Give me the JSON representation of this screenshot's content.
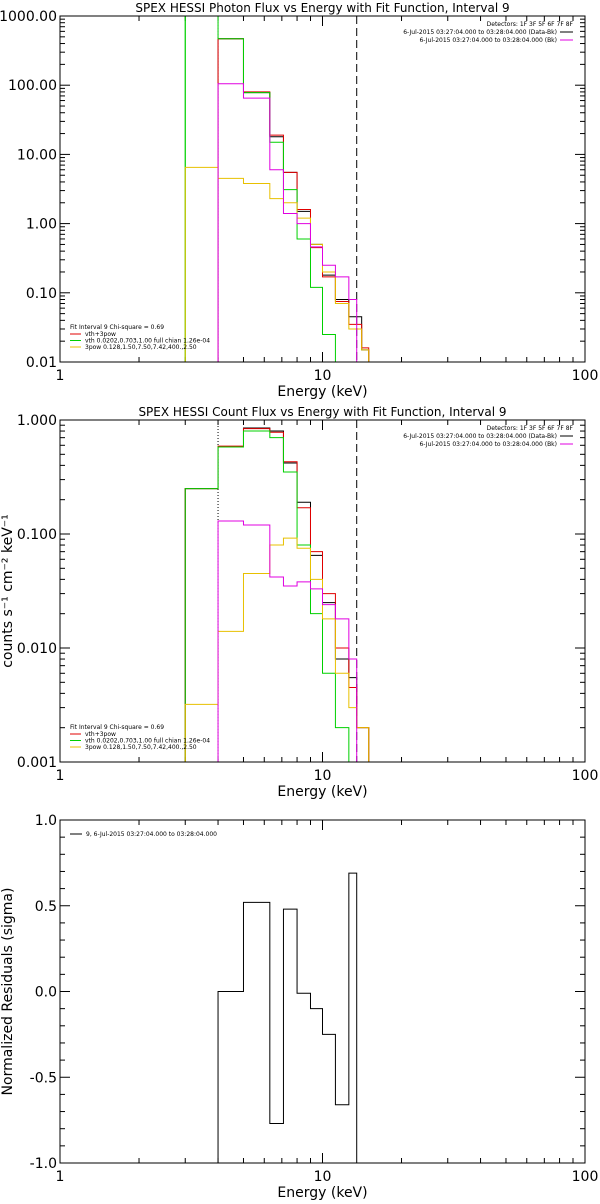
{
  "colors": {
    "black": "#000000",
    "red": "#e00000",
    "green": "#00d000",
    "magenta": "#e000e0",
    "yellow": "#e8c000",
    "purple_dotted": "#a000a0"
  },
  "chart_data": [
    {
      "type": "line",
      "title": "SPEX HESSI Photon Flux vs Energy with Fit Function, Interval 9",
      "xlabel": "Energy (keV)",
      "ylabel": "",
      "xscale": "log",
      "yscale": "log",
      "xlim": [
        1,
        100
      ],
      "ylim": [
        0.01,
        1000
      ],
      "xticks": [
        {
          "v": 1,
          "label": "1"
        },
        {
          "v": 10,
          "label": "10"
        },
        {
          "v": 100,
          "label": "100"
        }
      ],
      "yticks": [
        {
          "v": 0.01,
          "label": "0.01"
        },
        {
          "v": 0.1,
          "label": "0.10"
        },
        {
          "v": 1,
          "label": "1.00"
        },
        {
          "v": 10,
          "label": "10.00"
        },
        {
          "v": 100,
          "label": "100.00"
        },
        {
          "v": 1000,
          "label": "1000.00"
        }
      ],
      "vlines": [
        {
          "x": 3.0,
          "color": "green",
          "style": "solid"
        },
        {
          "x": 4.0,
          "color": "purple_dotted",
          "style": "dotted"
        },
        {
          "x": 13.5,
          "color": "black",
          "style": "dashed"
        }
      ],
      "legend_topright": {
        "header": "Detectors: 1F 3F 5F 6F 7F 8F",
        "entries": [
          {
            "text": "6-Jul-2015 03:27:04.000 to 03:28:04.000 (Data-Bk)",
            "color": "black"
          },
          {
            "text": "6-Jul-2015 03:27:04.000 to 03:28:04.000 (Bk)",
            "color": "magenta"
          }
        ]
      },
      "legend_bottomleft": {
        "header": "Fit Interval 9   Chi-square = 0.69",
        "entries": [
          {
            "text": "vth+3pow",
            "color": "red"
          },
          {
            "text": "vth 0.0202,0.703,1.00  full chian 1.26e-04",
            "color": "green"
          },
          {
            "text": "3pow 0.128,1.50,7.50,7.42,400.,2.50",
            "color": "yellow"
          }
        ]
      },
      "series": [
        {
          "name": "Data-Bk",
          "color": "black",
          "edges": [
            4.0,
            5.0,
            6.3,
            7.1,
            8.0,
            9.0,
            10.0,
            11.2,
            12.6,
            14.1,
            15.0
          ],
          "values": [
            470,
            78,
            18,
            5.5,
            1.5,
            0.5,
            0.18,
            0.08,
            0.045,
            0.015
          ]
        },
        {
          "name": "vth+3pow",
          "color": "red",
          "edges": [
            4.0,
            5.0,
            6.3,
            7.1,
            8.0,
            9.0,
            10.0,
            11.2,
            12.6,
            14.1,
            15.0
          ],
          "values": [
            470,
            80,
            19,
            5.5,
            1.6,
            0.45,
            0.17,
            0.075,
            0.035,
            0.016
          ]
        },
        {
          "name": "vth",
          "color": "green",
          "edges": [
            3.0,
            4.0,
            5.0,
            6.3,
            7.1,
            8.0,
            9.0,
            10.0,
            11.2,
            12.6
          ],
          "values": [
            1000,
            470,
            78,
            15,
            3.1,
            0.6,
            0.12,
            0.025,
            0.01
          ]
        },
        {
          "name": "3pow",
          "color": "yellow",
          "edges": [
            3.0,
            4.0,
            5.0,
            6.3,
            7.1,
            8.0,
            9.0,
            10.0,
            11.2,
            12.6,
            14.1,
            15.0
          ],
          "values": [
            6.5,
            4.5,
            3.8,
            2.3,
            2.0,
            1.2,
            0.5,
            0.2,
            0.07,
            0.03,
            0.015
          ]
        },
        {
          "name": "Bk",
          "color": "magenta",
          "edges": [
            4.0,
            5.0,
            6.3,
            7.1,
            8.0,
            9.0,
            10.0,
            11.2,
            12.6,
            13.5
          ],
          "values": [
            105,
            65,
            6,
            1.4,
            1.0,
            0.46,
            0.25,
            0.17,
            0.08
          ]
        }
      ]
    },
    {
      "type": "line",
      "title": "SPEX HESSI Count Flux vs Energy with Fit Function, Interval 9",
      "xlabel": "Energy (keV)",
      "ylabel": "counts s⁻¹ cm⁻² keV⁻¹",
      "xscale": "log",
      "yscale": "log",
      "xlim": [
        1,
        100
      ],
      "ylim": [
        0.001,
        1
      ],
      "xticks": [
        {
          "v": 1,
          "label": "1"
        },
        {
          "v": 10,
          "label": "10"
        },
        {
          "v": 100,
          "label": "100"
        }
      ],
      "yticks": [
        {
          "v": 0.001,
          "label": "0.001"
        },
        {
          "v": 0.01,
          "label": "0.010"
        },
        {
          "v": 0.1,
          "label": "0.100"
        },
        {
          "v": 1,
          "label": "1.000"
        }
      ],
      "vlines": [
        {
          "x": 4.0,
          "color": "black",
          "style": "dotted"
        },
        {
          "x": 13.5,
          "color": "black",
          "style": "dashed"
        }
      ],
      "legend_topright": {
        "header": "Detectors: 1F 3F 5F 6F 7F 8F",
        "entries": [
          {
            "text": "6-Jul-2015 03:27:04.000 to 03:28:04.000 (Data-Bk)",
            "color": "black"
          },
          {
            "text": "6-Jul-2015 03:27:04.000 to 03:28:04.000 (Bk)",
            "color": "magenta"
          }
        ]
      },
      "legend_bottomleft": {
        "header": "Fit Interval 9   Chi-square = 0.69",
        "entries": [
          {
            "text": "vth+3pow",
            "color": "red"
          },
          {
            "text": "vth 0.0202,0.703,1.00  full chian 1.26e-04",
            "color": "green"
          },
          {
            "text": "3pow 0.128,1.50,7.50,7.42,400.,2.50",
            "color": "yellow"
          }
        ]
      },
      "series": [
        {
          "name": "Data-Bk",
          "color": "black",
          "edges": [
            3.0,
            4.0,
            5.0,
            6.3,
            7.1,
            8.0,
            9.0,
            10.0,
            11.2,
            12.6,
            13.5,
            15.0
          ],
          "values": [
            0.25,
            0.58,
            0.85,
            0.8,
            0.42,
            0.19,
            0.065,
            0.025,
            0.008,
            0.0055,
            0.002
          ]
        },
        {
          "name": "vth+3pow",
          "color": "red",
          "edges": [
            3.0,
            4.0,
            5.0,
            6.3,
            7.1,
            8.0,
            9.0,
            10.0,
            11.2,
            12.6,
            13.5,
            15.0
          ],
          "values": [
            0.25,
            0.59,
            0.84,
            0.78,
            0.43,
            0.17,
            0.07,
            0.03,
            0.01,
            0.0045,
            0.002
          ]
        },
        {
          "name": "vth",
          "color": "green",
          "edges": [
            3.0,
            4.0,
            5.0,
            6.3,
            7.1,
            8.0,
            9.0,
            10.0,
            11.2,
            12.6,
            13.5
          ],
          "values": [
            0.25,
            0.58,
            0.8,
            0.7,
            0.35,
            0.08,
            0.02,
            0.006,
            0.002,
            0.001
          ]
        },
        {
          "name": "3pow",
          "color": "yellow",
          "edges": [
            3.0,
            4.0,
            5.0,
            6.3,
            7.1,
            8.0,
            9.0,
            10.0,
            11.2,
            12.6,
            13.5,
            15.0
          ],
          "values": [
            0.0032,
            0.014,
            0.045,
            0.08,
            0.092,
            0.075,
            0.04,
            0.018,
            0.006,
            0.003,
            0.002
          ]
        },
        {
          "name": "Bk",
          "color": "magenta",
          "edges": [
            4.0,
            5.0,
            6.3,
            7.1,
            8.0,
            9.0,
            10.0,
            11.2,
            12.6,
            13.5
          ],
          "values": [
            0.13,
            0.12,
            0.042,
            0.035,
            0.038,
            0.033,
            0.024,
            0.018,
            0.008
          ]
        }
      ]
    },
    {
      "type": "line",
      "title": "",
      "xlabel": "Energy (keV)",
      "ylabel": "Normalized Residuals (sigma)",
      "xscale": "log",
      "yscale": "linear",
      "xlim": [
        1,
        100
      ],
      "ylim": [
        -1,
        1
      ],
      "xticks": [
        {
          "v": 1,
          "label": "1"
        },
        {
          "v": 10,
          "label": "10"
        },
        {
          "v": 100,
          "label": "100"
        }
      ],
      "yticks": [
        {
          "v": -1,
          "label": "-1.0"
        },
        {
          "v": -0.5,
          "label": "-0.5"
        },
        {
          "v": 0,
          "label": "0.0"
        },
        {
          "v": 0.5,
          "label": "0.5"
        },
        {
          "v": 1,
          "label": "1.0"
        }
      ],
      "legend_topleft": {
        "entries": [
          {
            "text": "9,  6-Jul-2015 03:27:04.000 to 03:28:04.000",
            "color": "black"
          }
        ]
      },
      "series": [
        {
          "name": "residuals",
          "color": "black",
          "edges": [
            4.0,
            5.0,
            6.3,
            7.1,
            8.0,
            9.0,
            10.0,
            11.2,
            12.6,
            13.5
          ],
          "values": [
            0.0,
            0.52,
            -0.77,
            0.48,
            -0.01,
            -0.1,
            -0.25,
            -0.66,
            0.69
          ],
          "drop_to_bottom": true
        }
      ]
    }
  ]
}
